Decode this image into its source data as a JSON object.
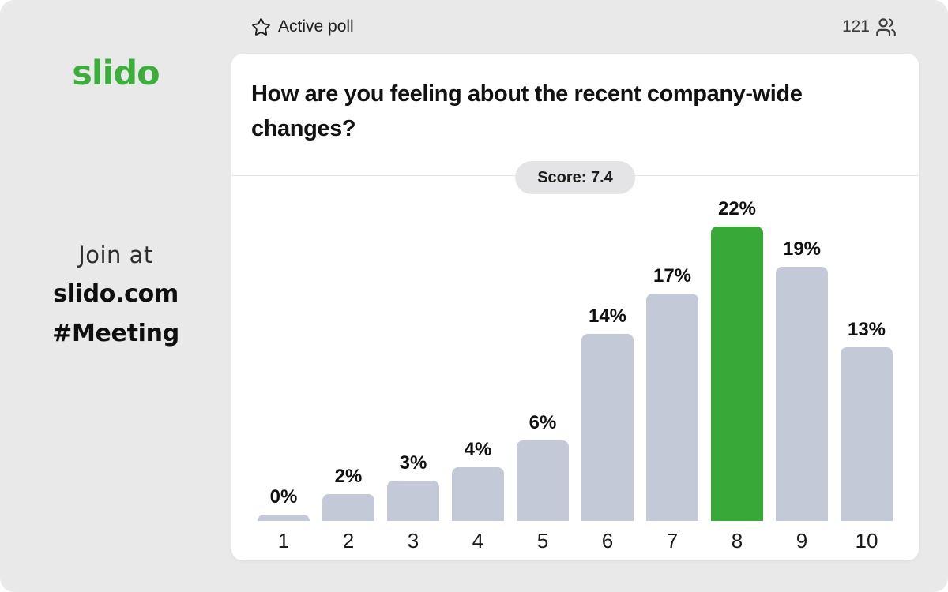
{
  "topbar": {
    "status_label": "Active poll",
    "participants_count": "121"
  },
  "sidebar": {
    "logo_text": "slido",
    "join_prompt": "Join at",
    "join_url": "slido.com",
    "event_code": "#Meeting"
  },
  "poll": {
    "question": "How are you feeling about the recent company-wide changes?",
    "score_badge": "Score: 7.4",
    "score": 7.4
  },
  "chart_data": {
    "type": "bar",
    "title": "How are you feeling about the recent company-wide changes?",
    "categories": [
      "1",
      "2",
      "3",
      "4",
      "5",
      "6",
      "7",
      "8",
      "9",
      "10"
    ],
    "values": [
      0,
      2,
      3,
      4,
      6,
      14,
      17,
      22,
      19,
      13
    ],
    "value_labels": [
      "0%",
      "2%",
      "3%",
      "4%",
      "6%",
      "14%",
      "17%",
      "22%",
      "19%",
      "13%"
    ],
    "unit": "percent",
    "ylim": [
      0,
      22
    ],
    "grid": false,
    "legend": false,
    "highlighted_index": 7,
    "bar_color": "#c3c9d6",
    "highlight_color": "#38a938"
  },
  "icons": {
    "poll_status": "star-icon",
    "participants": "users-icon"
  },
  "colors": {
    "background": "#e9e9e9",
    "card": "#ffffff",
    "brand_green": "#3cae3c",
    "bar_gray": "#c3c9d6",
    "bar_highlight": "#38a938",
    "badge_bg": "#e4e4e6",
    "divider": "#e7e7e7",
    "text_dark": "#121212"
  }
}
